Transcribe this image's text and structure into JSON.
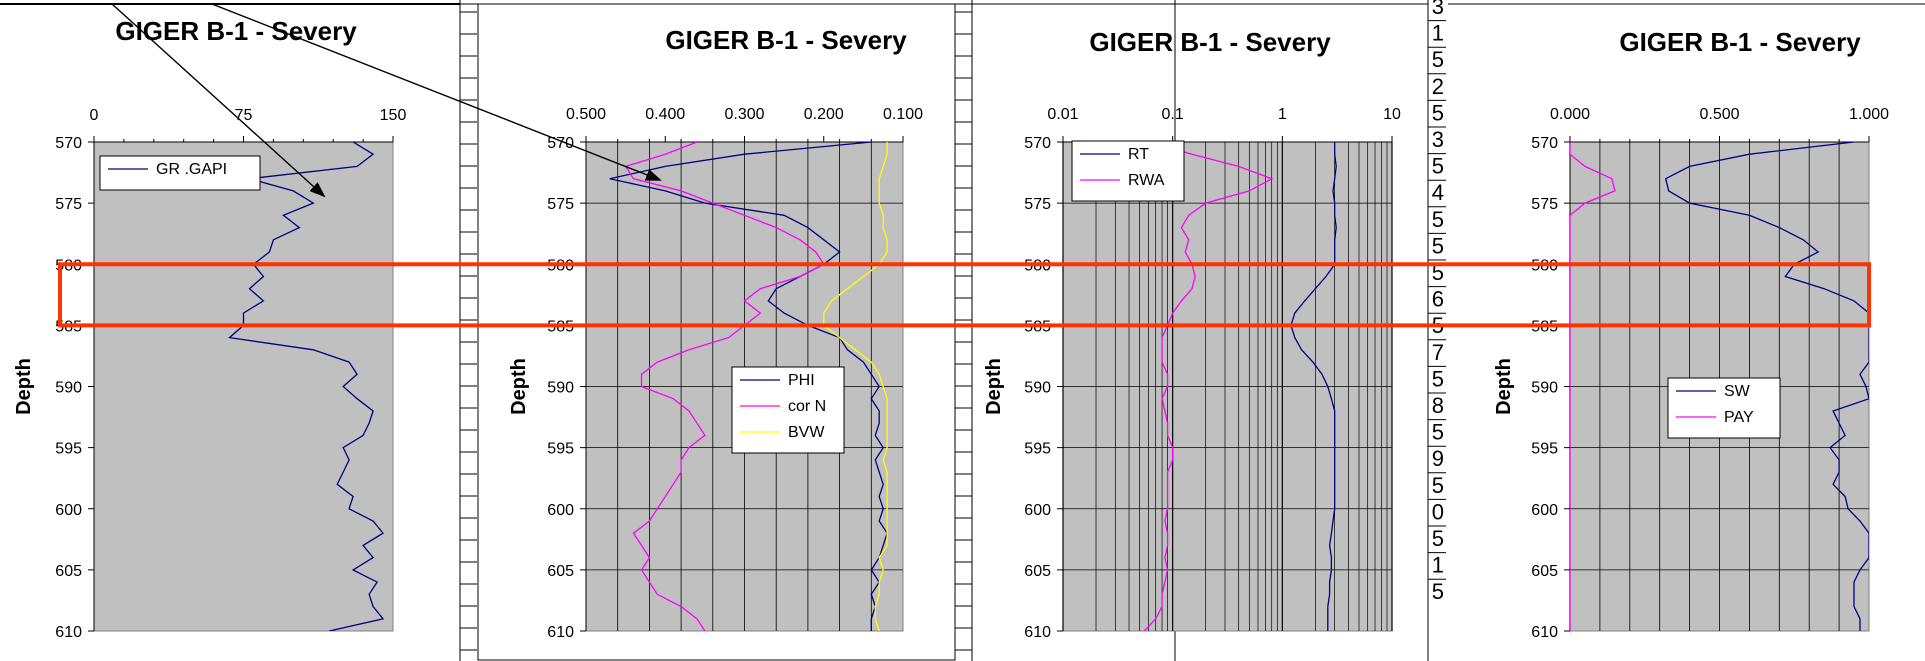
{
  "chart_data": [
    {
      "type": "line",
      "title": "GIGER B-1 - Severy",
      "ylabel": "Depth",
      "x_scale": "linear",
      "xlim": [
        0,
        150
      ],
      "x_reversed": false,
      "x_ticks": [
        "0",
        "75",
        "150"
      ],
      "x_tick_values": [
        0,
        75,
        150
      ],
      "ylim": [
        570,
        610
      ],
      "y_ticks": [
        "570",
        "575",
        "580",
        "585",
        "590",
        "595",
        "600",
        "605",
        "610"
      ],
      "grid": false,
      "legend": "top-left",
      "series": [
        {
          "name": "GR  .GAPI",
          "color": "#000080",
          "depth": [
            570,
            571,
            572,
            573,
            574,
            575,
            576,
            577,
            578,
            579,
            580,
            581,
            582,
            583,
            584,
            585,
            586,
            587,
            588,
            589,
            590,
            591,
            592,
            593,
            594,
            595,
            596,
            597,
            598,
            599,
            600,
            601,
            602,
            603,
            604,
            605,
            606,
            607,
            608,
            609,
            610
          ],
          "values": [
            130,
            140,
            132,
            78,
            100,
            110,
            95,
            103,
            90,
            88,
            80,
            85,
            78,
            85,
            75,
            75,
            68,
            110,
            128,
            132,
            125,
            132,
            140,
            138,
            135,
            125,
            128,
            125,
            122,
            130,
            128,
            140,
            145,
            135,
            140,
            130,
            142,
            138,
            140,
            145,
            118
          ]
        }
      ]
    },
    {
      "type": "line",
      "title": "GIGER B-1 - Severy",
      "ylabel": "Depth",
      "x_scale": "linear",
      "xlim": [
        0.5,
        0.1
      ],
      "x_reversed": true,
      "x_ticks": [
        "0.500",
        "0.400",
        "0.300",
        "0.200",
        "0.100"
      ],
      "x_tick_values": [
        0.5,
        0.4,
        0.3,
        0.2,
        0.1
      ],
      "ylim": [
        570,
        610
      ],
      "y_ticks": [
        "570",
        "575",
        "580",
        "585",
        "590",
        "595",
        "600",
        "605",
        "610"
      ],
      "grid": true,
      "legend": "center-right",
      "series": [
        {
          "name": "PHI",
          "color": "#000080",
          "depth": [
            570,
            571,
            572,
            573,
            574,
            575,
            576,
            577,
            578,
            579,
            580,
            581,
            582,
            583,
            584,
            585,
            586,
            587,
            588,
            589,
            590,
            591,
            592,
            593,
            594,
            595,
            596,
            597,
            598,
            599,
            600,
            601,
            602,
            603,
            604,
            605,
            606,
            607,
            608,
            609,
            610
          ],
          "values": [
            0.14,
            0.3,
            0.4,
            0.47,
            0.4,
            0.35,
            0.25,
            0.22,
            0.2,
            0.18,
            0.2,
            0.23,
            0.26,
            0.27,
            0.25,
            0.22,
            0.18,
            0.17,
            0.15,
            0.14,
            0.13,
            0.14,
            0.13,
            0.13,
            0.135,
            0.125,
            0.135,
            0.13,
            0.125,
            0.13,
            0.125,
            0.13,
            0.12,
            0.125,
            0.13,
            0.14,
            0.13,
            0.14,
            0.135,
            0.14,
            0.14
          ]
        },
        {
          "name": "cor N",
          "color": "#ff00ff",
          "depth": [
            570,
            571,
            572,
            573,
            574,
            575,
            576,
            577,
            578,
            579,
            580,
            581,
            582,
            583,
            584,
            585,
            586,
            587,
            588,
            589,
            590,
            591,
            592,
            593,
            594,
            595,
            596,
            597,
            598,
            599,
            600,
            601,
            602,
            603,
            604,
            605,
            606,
            607,
            608,
            609,
            610
          ],
          "values": [
            0.36,
            0.4,
            0.45,
            0.44,
            0.38,
            0.34,
            0.3,
            0.26,
            0.23,
            0.21,
            0.2,
            0.23,
            0.28,
            0.3,
            0.28,
            0.3,
            0.32,
            0.37,
            0.41,
            0.43,
            0.43,
            0.39,
            0.37,
            0.36,
            0.35,
            0.37,
            0.38,
            0.38,
            0.39,
            0.4,
            0.41,
            0.42,
            0.44,
            0.43,
            0.42,
            0.43,
            0.42,
            0.41,
            0.38,
            0.36,
            0.35
          ]
        },
        {
          "name": "BVW",
          "color": "#ffff00",
          "depth": [
            570,
            571,
            572,
            573,
            574,
            575,
            576,
            577,
            578,
            579,
            580,
            581,
            582,
            583,
            584,
            585,
            586,
            587,
            588,
            589,
            590,
            591,
            592,
            593,
            594,
            595,
            596,
            597,
            598,
            599,
            600,
            601,
            602,
            603,
            604,
            605,
            606,
            607,
            608,
            609,
            610
          ],
          "values": [
            0.12,
            0.12,
            0.125,
            0.13,
            0.13,
            0.13,
            0.125,
            0.125,
            0.12,
            0.12,
            0.13,
            0.15,
            0.17,
            0.19,
            0.2,
            0.2,
            0.18,
            0.16,
            0.14,
            0.13,
            0.125,
            0.12,
            0.12,
            0.12,
            0.12,
            0.12,
            0.125,
            0.12,
            0.12,
            0.12,
            0.12,
            0.12,
            0.12,
            0.12,
            0.13,
            0.125,
            0.13,
            0.13,
            0.135,
            0.135,
            0.13
          ]
        }
      ]
    },
    {
      "type": "line",
      "title": "GIGER B-1 - Severy",
      "ylabel": "Depth",
      "x_scale": "log",
      "xlim": [
        0.01,
        10
      ],
      "x_reversed": false,
      "x_ticks": [
        "0.01",
        "0.1",
        "1",
        "10"
      ],
      "x_tick_values": [
        0.01,
        0.1,
        1,
        10
      ],
      "ylim": [
        570,
        610
      ],
      "y_ticks": [
        "570",
        "575",
        "580",
        "585",
        "590",
        "595",
        "600",
        "605",
        "610"
      ],
      "grid": true,
      "legend": "top-left",
      "series": [
        {
          "name": "RT",
          "color": "#000080",
          "depth": [
            570,
            571,
            572,
            573,
            574,
            575,
            576,
            577,
            578,
            579,
            580,
            581,
            582,
            583,
            584,
            585,
            586,
            587,
            588,
            589,
            590,
            591,
            592,
            593,
            594,
            595,
            596,
            597,
            598,
            599,
            600,
            601,
            602,
            603,
            604,
            605,
            606,
            607,
            608,
            609,
            610
          ],
          "values": [
            3,
            3,
            3.1,
            3,
            2.9,
            3,
            3,
            3.1,
            3,
            3,
            3,
            2.5,
            2,
            1.6,
            1.3,
            1.2,
            1.3,
            1.5,
            1.9,
            2.3,
            2.6,
            2.8,
            3,
            3,
            3,
            3,
            3,
            3,
            3,
            3,
            3,
            2.9,
            2.8,
            2.7,
            2.8,
            2.8,
            2.7,
            2.7,
            2.6,
            2.6,
            2.6
          ]
        },
        {
          "name": "RWA",
          "color": "#ff00ff",
          "depth": [
            570,
            571,
            572,
            573,
            574,
            575,
            576,
            577,
            578,
            579,
            580,
            581,
            582,
            583,
            584,
            585,
            586,
            587,
            588,
            589,
            590,
            591,
            592,
            593,
            594,
            595,
            596,
            597,
            598,
            599,
            600,
            601,
            602,
            603,
            604,
            605,
            606,
            607,
            608,
            609,
            610
          ],
          "values": [
            0.06,
            0.15,
            0.4,
            0.8,
            0.5,
            0.2,
            0.14,
            0.12,
            0.14,
            0.13,
            0.15,
            0.16,
            0.15,
            0.12,
            0.1,
            0.09,
            0.08,
            0.08,
            0.08,
            0.09,
            0.09,
            0.08,
            0.085,
            0.09,
            0.09,
            0.1,
            0.1,
            0.09,
            0.09,
            0.09,
            0.09,
            0.085,
            0.09,
            0.09,
            0.085,
            0.09,
            0.085,
            0.08,
            0.08,
            0.07,
            0.055
          ]
        }
      ]
    },
    {
      "type": "line",
      "title": "GIGER B-1 - Severy",
      "ylabel": "Depth",
      "x_scale": "linear",
      "xlim": [
        0,
        1
      ],
      "x_reversed": false,
      "x_ticks": [
        "0.000",
        "0.500",
        "1.000"
      ],
      "x_tick_values": [
        0,
        0.5,
        1
      ],
      "ylim": [
        570,
        610
      ],
      "y_ticks": [
        "570",
        "575",
        "580",
        "585",
        "590",
        "595",
        "600",
        "605",
        "610"
      ],
      "grid": true,
      "legend": "center-right",
      "series": [
        {
          "name": "SW",
          "color": "#000080",
          "depth": [
            570,
            571,
            572,
            573,
            574,
            575,
            576,
            577,
            578,
            579,
            580,
            581,
            582,
            583,
            584,
            585,
            586,
            587,
            588,
            589,
            590,
            591,
            592,
            593,
            594,
            595,
            596,
            597,
            598,
            599,
            600,
            601,
            602,
            603,
            604,
            605,
            606,
            607,
            608,
            609,
            610
          ],
          "values": [
            0.95,
            0.6,
            0.4,
            0.32,
            0.33,
            0.4,
            0.6,
            0.7,
            0.78,
            0.83,
            0.75,
            0.72,
            0.85,
            0.95,
            1,
            1,
            1,
            1,
            1,
            0.97,
            0.99,
            1,
            0.88,
            0.9,
            0.92,
            0.87,
            0.9,
            0.9,
            0.88,
            0.92,
            0.93,
            0.97,
            1,
            1,
            1,
            0.97,
            0.95,
            0.95,
            0.95,
            0.97,
            0.97
          ]
        },
        {
          "name": "PAY",
          "color": "#ff00ff",
          "depth": [
            570,
            571,
            572,
            573,
            574,
            575,
            576,
            577,
            578,
            579,
            580,
            581,
            582,
            583,
            584,
            585,
            586,
            587,
            588,
            589,
            590,
            591,
            592,
            593,
            594,
            595,
            596,
            597,
            598,
            599,
            600,
            601,
            602,
            603,
            604,
            605,
            606,
            607,
            608,
            609,
            610
          ],
          "values": [
            0,
            0,
            0.05,
            0.14,
            0.15,
            0.05,
            0,
            0,
            0,
            0,
            0,
            0,
            0,
            0,
            0,
            0,
            0,
            0,
            0,
            0,
            0,
            0,
            0,
            0,
            0,
            0,
            0,
            0,
            0,
            0,
            0,
            0,
            0,
            0,
            0,
            0,
            0,
            0,
            0,
            0,
            0
          ]
        }
      ]
    }
  ],
  "strip_text": [
    "3",
    "1",
    "5",
    "2",
    "5",
    "3",
    "5",
    "4",
    "5",
    "5",
    "5",
    "6",
    "5",
    "7",
    "5",
    "8",
    "5",
    "9",
    "5",
    "0",
    "5",
    "1",
    "5"
  ],
  "highlight_color": "#ff3300",
  "arrow_color": "#000000"
}
